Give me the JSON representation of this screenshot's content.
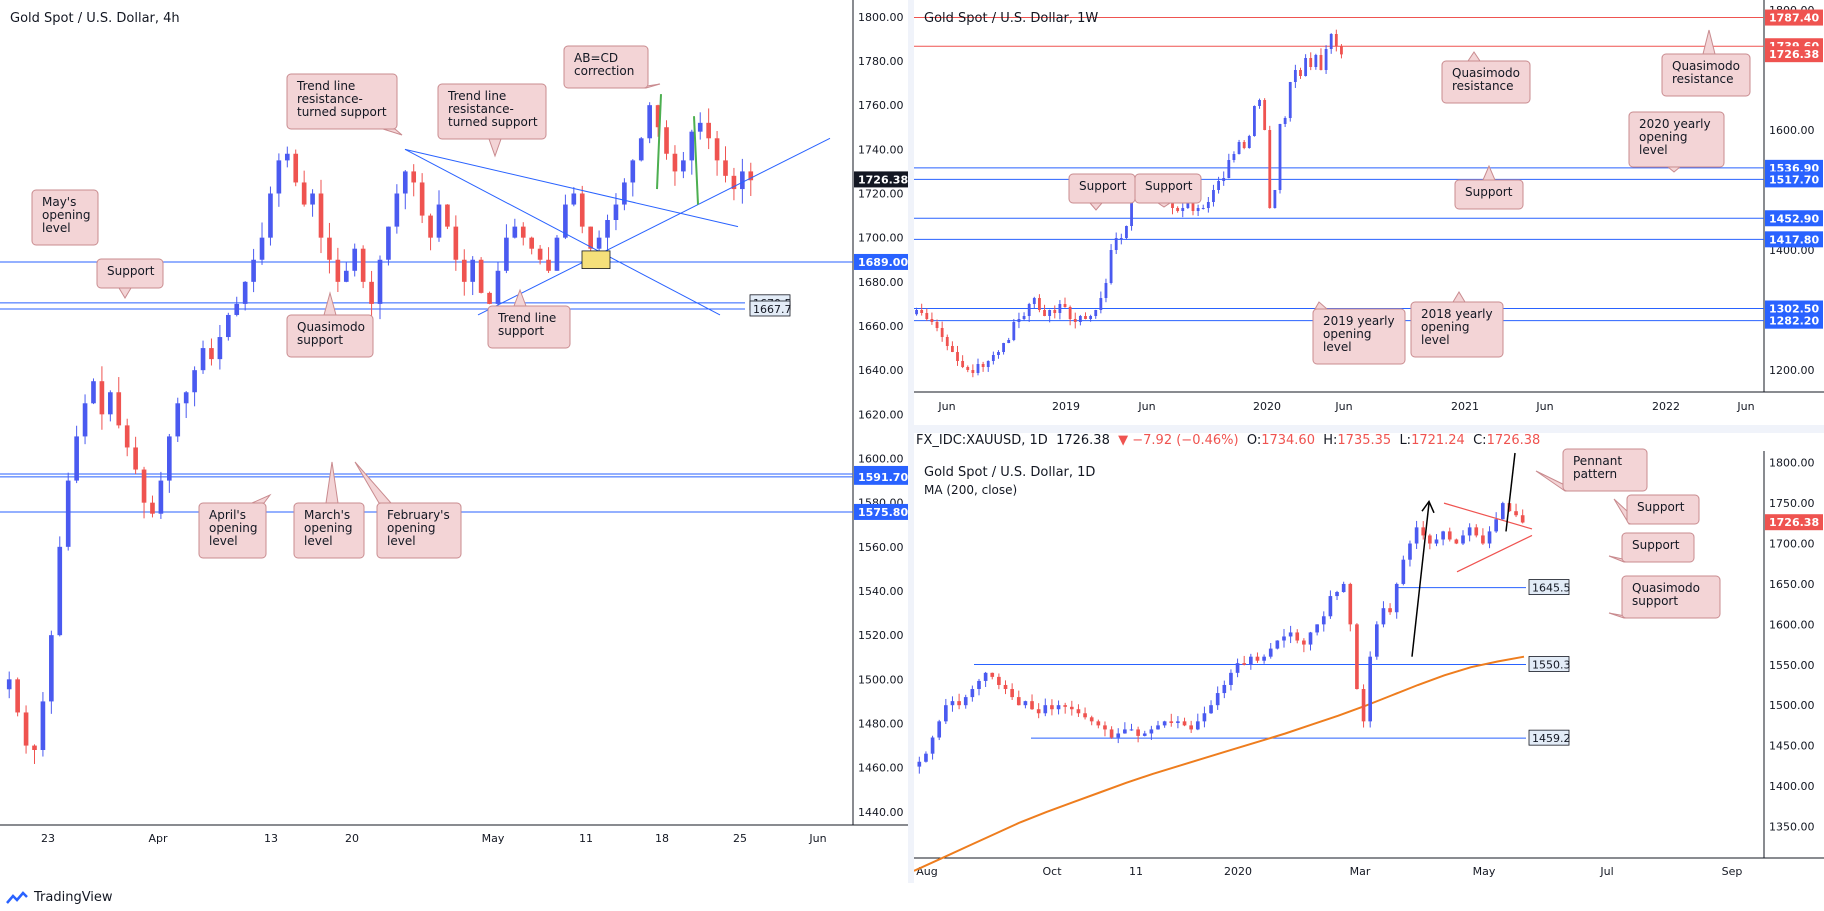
{
  "colors": {
    "up": "#4a5af0",
    "down": "#ef5350",
    "level": "#2962ff",
    "callout_bg": "#f3d4d6",
    "callout_border": "#c98b8f",
    "ma": "#ee7d1e",
    "pennant": "#ef5350",
    "arrow": "#000000",
    "green": "#4caf50"
  },
  "footer": {
    "brand": "TradingView"
  },
  "chart_data": [
    {
      "type": "candlestick",
      "title": "Gold Spot / U.S. Dollar, 4h",
      "x_ticks": [
        "23",
        "Apr",
        "13",
        "20",
        "May",
        "11",
        "18",
        "25",
        "Jun"
      ],
      "y_ticks": [
        1440,
        1460,
        1480,
        1500,
        1520,
        1540,
        1560,
        1580,
        1600,
        1620,
        1640,
        1660,
        1680,
        1700,
        1720,
        1740,
        1760,
        1780,
        1800
      ],
      "ylim": [
        1420,
        1804
      ],
      "current_price": "1726.38",
      "levels": [
        {
          "label": "1689.00",
          "value": 1689.0,
          "style": "solid",
          "color": "#2962ff"
        },
        {
          "label": "1670.5",
          "value": 1670.5,
          "style": "box",
          "color": "#2962ff"
        },
        {
          "label": "1667.7",
          "value": 1667.7,
          "style": "box",
          "color": "#2962ff"
        },
        {
          "label": "1593.00",
          "value": 1593.0,
          "style": "solid",
          "color": "#2962ff"
        },
        {
          "label": "1591.70",
          "value": 1591.7,
          "style": "solid",
          "color": "#2962ff"
        },
        {
          "label": "1575.80",
          "value": 1575.8,
          "style": "solid",
          "color": "#2962ff"
        }
      ],
      "callouts": [
        {
          "text": [
            "AB=CD",
            "correction"
          ]
        },
        {
          "text": [
            "Trend line",
            "resistance-",
            "turned support"
          ]
        },
        {
          "text": [
            "Trend line",
            "resistance-",
            "turned support"
          ]
        },
        {
          "text": [
            "May's",
            "opening",
            "level"
          ]
        },
        {
          "text": [
            "Support"
          ]
        },
        {
          "text": [
            "Quasimodo",
            "support"
          ]
        },
        {
          "text": [
            "Trend line",
            "support"
          ]
        },
        {
          "text": [
            "April's",
            "opening",
            "level"
          ]
        },
        {
          "text": [
            "March's",
            "opening",
            "level"
          ]
        },
        {
          "text": [
            "February's",
            "opening",
            "level"
          ]
        }
      ],
      "series": [
        {
          "name": "",
          "close": [
            1500,
            1485,
            1470,
            1468,
            1490,
            1520,
            1560,
            1590,
            1610,
            1625,
            1635,
            1620,
            1630,
            1615,
            1605,
            1595,
            1580,
            1575,
            1590,
            1610,
            1625,
            1630,
            1640,
            1650,
            1645,
            1655,
            1665,
            1670,
            1680,
            1690,
            1700,
            1720,
            1735,
            1738,
            1725,
            1715,
            1720,
            1700,
            1690,
            1680,
            1685,
            1695,
            1680,
            1670,
            1690,
            1705,
            1720,
            1730,
            1725,
            1710,
            1700,
            1715,
            1705,
            1690,
            1680,
            1690,
            1675,
            1670,
            1685,
            1700,
            1705,
            1700,
            1695,
            1690,
            1685,
            1700,
            1715,
            1720,
            1705,
            1695,
            1700,
            1708,
            1715,
            1725,
            1735,
            1745,
            1760,
            1750,
            1738,
            1730,
            1735,
            1748,
            1752,
            1745,
            1735,
            1728,
            1722,
            1730,
            1726
          ]
        }
      ]
    },
    {
      "type": "candlestick",
      "title": "Gold Spot / U.S. Dollar, 1W",
      "x_ticks": [
        "Jun",
        "2019",
        "Jun",
        "2020",
        "Jun",
        "2021",
        "Jun",
        "2022",
        "Jun"
      ],
      "y_ticks": [
        "1200.00",
        "1400.00",
        "1600.00",
        "1800.00"
      ],
      "ylim": [
        1150,
        1810
      ],
      "levels": [
        {
          "label": "1787.40",
          "value": 1787.4,
          "color": "#ef5350"
        },
        {
          "label": "1739.60",
          "value": 1739.6,
          "color": "#ef5350"
        },
        {
          "label": "1726.38",
          "value": 1726.38,
          "color": "#ef5350",
          "style": "price"
        },
        {
          "label": "1536.90",
          "value": 1536.9,
          "color": "#2962ff"
        },
        {
          "label": "1517.70",
          "value": 1517.7,
          "color": "#2962ff"
        },
        {
          "label": "1452.90",
          "value": 1452.9,
          "color": "#2962ff"
        },
        {
          "label": "1417.80",
          "value": 1417.8,
          "color": "#2962ff"
        },
        {
          "label": "1302.50",
          "value": 1302.5,
          "color": "#2962ff"
        },
        {
          "label": "1282.20",
          "value": 1282.2,
          "color": "#2962ff"
        }
      ],
      "callouts": [
        {
          "text": [
            "Quasimodo",
            "resistance"
          ]
        },
        {
          "text": [
            "Quasimodo",
            "resistance"
          ]
        },
        {
          "text": [
            "2020 yearly",
            "opening",
            "level"
          ]
        },
        {
          "text": [
            "Support"
          ]
        },
        {
          "text": [
            "Support"
          ]
        },
        {
          "text": [
            "Support"
          ]
        },
        {
          "text": [
            "2019 yearly",
            "opening",
            "level"
          ]
        },
        {
          "text": [
            "2018 yearly",
            "opening",
            "level"
          ]
        }
      ],
      "series": [
        {
          "name": "",
          "close": [
            1300,
            1295,
            1285,
            1280,
            1270,
            1255,
            1240,
            1230,
            1215,
            1205,
            1200,
            1195,
            1210,
            1205,
            1215,
            1225,
            1230,
            1245,
            1250,
            1280,
            1285,
            1290,
            1310,
            1320,
            1300,
            1290,
            1300,
            1295,
            1310,
            1305,
            1285,
            1280,
            1290,
            1285,
            1290,
            1300,
            1320,
            1345,
            1400,
            1420,
            1420,
            1440,
            1500,
            1510,
            1500,
            1520,
            1505,
            1495,
            1515,
            1495,
            1470,
            1465,
            1470,
            1480,
            1465,
            1470,
            1470,
            1480,
            1500,
            1515,
            1520,
            1550,
            1560,
            1580,
            1570,
            1590,
            1640,
            1650,
            1600,
            1470,
            1500,
            1610,
            1620,
            1680,
            1700,
            1690,
            1720,
            1705,
            1725,
            1700,
            1735,
            1760,
            1740,
            1726
          ]
        }
      ]
    },
    {
      "type": "candlestick",
      "title": "Gold Spot / U.S. Dollar, 1D",
      "ma_label": "MA (200, close)",
      "symbol_bar": {
        "symbol": "FX_IDC:XAUUSD, 1D",
        "last": "1726.38",
        "change": "▼ −7.92 (−0.46%)",
        "o_label": "O:",
        "o": "1734.60",
        "h_label": "H:",
        "h": "1735.35",
        "l_label": "L:",
        "l": "1721.24",
        "c_label": "C:",
        "c": "1726.38"
      },
      "x_ticks": [
        "Aug",
        "Oct",
        "11",
        "2020",
        "Mar",
        "May",
        "Jul",
        "Sep"
      ],
      "y_ticks": [
        "1300.00",
        "1350.00",
        "1400.00",
        "1450.00",
        "1500.00",
        "1550.00",
        "1600.00",
        "1650.00",
        "1700.00",
        "1750.00",
        "1800.00"
      ],
      "ylim": [
        1280,
        1812
      ],
      "current_price": "1726.38",
      "levels": [
        {
          "label": "1645.5",
          "value": 1645.5,
          "style": "box",
          "color": "#2962ff"
        },
        {
          "label": "1550.3",
          "value": 1550.3,
          "style": "box",
          "color": "#2962ff"
        },
        {
          "label": "1459.2",
          "value": 1459.2,
          "style": "box",
          "color": "#2962ff"
        }
      ],
      "callouts": [
        {
          "text": [
            "Pennant",
            "pattern"
          ]
        },
        {
          "text": [
            "Support"
          ]
        },
        {
          "text": [
            "Support"
          ]
        },
        {
          "text": [
            "Quasimodo",
            "support"
          ]
        }
      ],
      "series": [
        {
          "name": "",
          "close": [
            1430,
            1440,
            1460,
            1480,
            1500,
            1505,
            1500,
            1510,
            1520,
            1530,
            1540,
            1535,
            1525,
            1520,
            1510,
            1500,
            1505,
            1495,
            1490,
            1500,
            1495,
            1500,
            1498,
            1495,
            1490,
            1485,
            1480,
            1475,
            1470,
            1460,
            1465,
            1470,
            1470,
            1462,
            1465,
            1470,
            1475,
            1480,
            1478,
            1480,
            1475,
            1470,
            1480,
            1490,
            1500,
            1515,
            1525,
            1540,
            1552,
            1550,
            1560,
            1555,
            1560,
            1570,
            1580,
            1585,
            1590,
            1580,
            1575,
            1590,
            1600,
            1610,
            1635,
            1640,
            1650,
            1600,
            1520,
            1480,
            1560,
            1600,
            1620,
            1615,
            1650,
            1680,
            1700,
            1720,
            1710,
            1700,
            1705,
            1715,
            1705,
            1700,
            1710,
            1720,
            1710,
            1700,
            1715,
            1730,
            1750,
            1740,
            1735,
            1726
          ]
        },
        {
          "name": "MA (200, close)",
          "close": [
            1295,
            1310,
            1325,
            1340,
            1355,
            1368,
            1380,
            1392,
            1404,
            1415,
            1425,
            1435,
            1445,
            1455,
            1465,
            1476,
            1487,
            1499,
            1512,
            1525,
            1537,
            1547,
            1554,
            1560
          ]
        }
      ]
    }
  ]
}
